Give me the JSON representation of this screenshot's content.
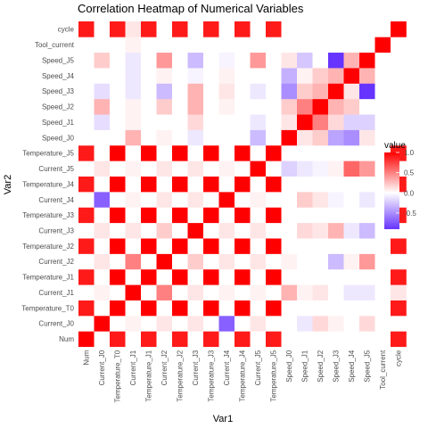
{
  "chart_data": {
    "type": "heatmap",
    "title": "Correlation Heatmap of Numerical Variables",
    "xlabel": "Var1",
    "ylabel": "Var2",
    "variables": [
      "Num",
      "Current_J0",
      "Temperature_T0",
      "Current_J1",
      "Temperature_J1",
      "Current_J2",
      "Temperature_J2",
      "Current_J3",
      "Temperature_J3",
      "Current_J4",
      "Temperature_J4",
      "Current_J5",
      "Temperature_J5",
      "Speed_J0",
      "Speed_J1",
      "Speed_J2",
      "Speed_J3",
      "Speed_J4",
      "Speed_J5",
      "Tool_current",
      "cycle"
    ],
    "matrix": [
      [
        1,
        0,
        0.9,
        0,
        0.9,
        0,
        0.9,
        0,
        0.9,
        0,
        0.9,
        0,
        0.9,
        0,
        0,
        0,
        0,
        0,
        0,
        0,
        0.9
      ],
      [
        0,
        1,
        0,
        0.05,
        0,
        0.1,
        0,
        0.1,
        0,
        -0.7,
        0,
        0.1,
        0,
        0,
        -0.1,
        0.15,
        0.05,
        0,
        0.15,
        0,
        0
      ],
      [
        0.9,
        0,
        1,
        0,
        1,
        0,
        1,
        0,
        1,
        0,
        1,
        0,
        1,
        0,
        0,
        0,
        0,
        0,
        0,
        0,
        0.9
      ],
      [
        0,
        0.05,
        0,
        1,
        0,
        0.5,
        0,
        0.1,
        0,
        0.05,
        0,
        0.05,
        0,
        0.3,
        0.05,
        0.1,
        0,
        -0.1,
        -0.1,
        0,
        0.1
      ],
      [
        0.9,
        0,
        1,
        0,
        1,
        0,
        1,
        0,
        1,
        0,
        1,
        0,
        1,
        0,
        0,
        0,
        0,
        0,
        0,
        0,
        0.9
      ],
      [
        0,
        0.1,
        0,
        0.5,
        0,
        1,
        0,
        0.2,
        0,
        0.1,
        0,
        0.1,
        0,
        0.05,
        0,
        0,
        -0.3,
        0.05,
        0.4,
        0,
        0
      ],
      [
        0.9,
        0,
        1,
        0,
        1,
        0,
        1,
        0,
        1,
        0,
        1,
        0,
        1,
        0,
        0,
        0,
        0,
        0,
        0,
        0,
        0.9
      ],
      [
        0,
        0.1,
        0,
        0.1,
        0,
        0.2,
        0,
        1,
        0,
        0.1,
        0,
        0.1,
        0,
        0,
        0.15,
        0.1,
        0.3,
        -0.1,
        -0.3,
        0,
        0
      ],
      [
        0.9,
        0,
        1,
        0,
        1,
        0,
        1,
        0,
        1,
        0,
        1,
        0,
        1,
        0,
        0,
        0,
        0,
        0,
        0,
        0,
        0.9
      ],
      [
        0,
        -0.7,
        0,
        0.05,
        0,
        0.1,
        0,
        0.1,
        0,
        1,
        0,
        0.05,
        0,
        0,
        0.2,
        0.1,
        -0.05,
        0,
        -0.1,
        0,
        0
      ],
      [
        0.9,
        0,
        1,
        0,
        1,
        0,
        1,
        0,
        1,
        0,
        1,
        0,
        1,
        0,
        0,
        0,
        0,
        0,
        0,
        0,
        0.9
      ],
      [
        0,
        0.1,
        0,
        0.05,
        0,
        0.1,
        0,
        0.1,
        0,
        0.05,
        0,
        1,
        0,
        -0.2,
        -0.1,
        -0.05,
        0.05,
        0.6,
        0.4,
        0,
        0
      ],
      [
        0.9,
        0,
        1,
        0,
        1,
        0,
        1,
        0,
        1,
        0,
        1,
        0,
        1,
        0,
        0,
        0,
        0,
        0,
        0,
        0,
        0.9
      ],
      [
        0,
        0,
        0,
        0.3,
        0,
        0.05,
        0,
        -0.1,
        0,
        0,
        0,
        -0.3,
        0,
        1,
        0.1,
        0.2,
        -0.4,
        -0.5,
        0.1,
        0,
        0
      ],
      [
        0,
        -0.15,
        0,
        0.05,
        0,
        0,
        0,
        0.15,
        0,
        0,
        0,
        -0.1,
        0,
        0.1,
        1,
        0.5,
        0.15,
        -0.2,
        -0.2,
        0,
        0
      ],
      [
        0,
        0.3,
        0,
        0.05,
        0,
        0.2,
        0,
        0.3,
        0,
        0.05,
        0,
        0,
        0,
        0.2,
        0.5,
        1,
        0.3,
        0.2,
        0,
        0,
        0
      ],
      [
        0,
        -0.15,
        0,
        -0.1,
        0,
        -0.3,
        0,
        0.3,
        0,
        0.1,
        0,
        -0.1,
        0,
        -0.5,
        0.2,
        0.3,
        1,
        0.1,
        -0.9,
        0,
        0
      ],
      [
        0,
        0,
        0,
        -0.1,
        0,
        0.05,
        0,
        -0.05,
        0,
        0.05,
        0,
        0,
        0,
        -0.35,
        0.05,
        0.2,
        0.3,
        1,
        0.3,
        0,
        0
      ],
      [
        0,
        0.2,
        0,
        -0.1,
        0,
        0.4,
        0,
        -0.3,
        0,
        -0.05,
        0,
        0.4,
        0,
        0.1,
        -0.25,
        0,
        -0.9,
        0.3,
        1,
        0,
        0
      ],
      [
        0,
        0,
        0,
        0.05,
        0,
        0,
        0,
        0,
        0,
        0,
        0,
        0,
        0,
        0,
        0,
        0,
        0,
        0,
        0,
        1,
        0
      ],
      [
        0.9,
        0,
        0.9,
        0.1,
        0.9,
        0,
        0.9,
        0,
        0.9,
        0,
        0.9,
        0,
        0.9,
        0,
        0,
        0,
        0,
        0,
        0,
        0,
        1
      ]
    ],
    "legend": {
      "title": "value",
      "ticks": [
        "1.0",
        "0.5",
        "0.0",
        "-0.5"
      ],
      "tick_values": [
        1.0,
        0.5,
        0.0,
        -0.5
      ],
      "range": [
        -0.9,
        1.0
      ],
      "placement": "right"
    },
    "colors": {
      "high": "#ff0000",
      "mid": "#ffffff",
      "low": "#6633ff"
    }
  }
}
